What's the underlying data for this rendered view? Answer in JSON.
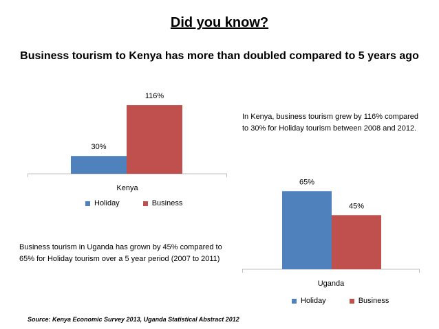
{
  "header": {
    "title": "Did you know?",
    "subtitle": "Business tourism to Kenya has more than doubled compared to 5 years ago"
  },
  "colors": {
    "holiday": "#4f81bd",
    "business": "#c0504d",
    "axis": "#bfbfbf"
  },
  "chart_data": [
    {
      "type": "bar",
      "categories": [
        "Kenya"
      ],
      "series": [
        {
          "name": "Holiday",
          "values": [
            30
          ],
          "labels": [
            "30%"
          ]
        },
        {
          "name": "Business",
          "values": [
            116
          ],
          "labels": [
            "116%"
          ]
        }
      ],
      "ylim": [
        0,
        130
      ],
      "grid": false,
      "legend": "bottom"
    },
    {
      "type": "bar",
      "categories": [
        "Uganda"
      ],
      "series": [
        {
          "name": "Holiday",
          "values": [
            65
          ],
          "labels": [
            "65%"
          ]
        },
        {
          "name": "Business",
          "values": [
            45
          ],
          "labels": [
            "45%"
          ]
        }
      ],
      "ylim": [
        0,
        80
      ],
      "grid": false,
      "legend": "bottom"
    }
  ],
  "notes": {
    "kenya_line1": "In Kenya, business tourism grew by 116% compared",
    "kenya_line2": "to 30% for Holiday tourism between 2008 and 2012.",
    "uganda_line1": "Business tourism in Uganda has grown by 45% compared to",
    "uganda_line2": "65% for Holiday tourism over a 5 year period (2007 to 2011)"
  },
  "source": "Source: Kenya Economic Survey 2013, Uganda Statistical Abstract 2012"
}
